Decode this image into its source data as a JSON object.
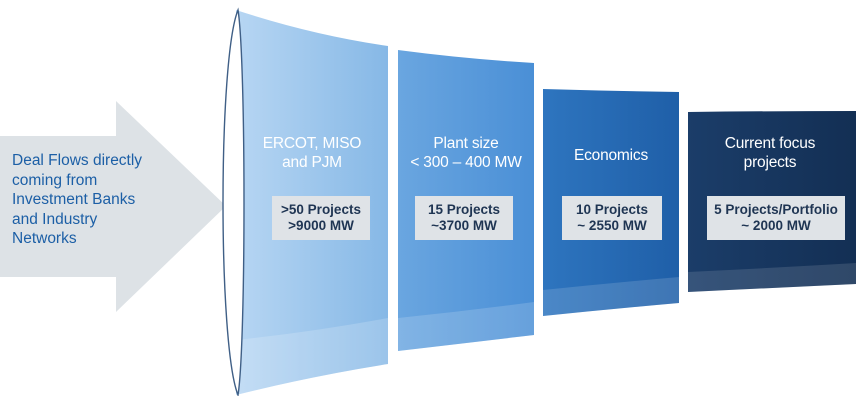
{
  "arrow": {
    "lines": [
      "Deal Flows directly",
      "coming from",
      "Investment Banks",
      "and Industry",
      "Networks"
    ]
  },
  "stages": [
    {
      "heading": [
        "ERCOT, MISO",
        "and PJM"
      ],
      "box": [
        ">50 Projects",
        ">9000 MW"
      ],
      "color": "#8fbfe9"
    },
    {
      "heading": [
        "Plant size",
        "< 300 – 400 MW"
      ],
      "box": [
        "15 Projects",
        "~3700 MW"
      ],
      "color": "#5799dc"
    },
    {
      "heading": [
        "Economics"
      ],
      "box": [
        "10 Projects",
        "~ 2550 MW"
      ],
      "color": "#2467b1"
    },
    {
      "heading": [
        "Current focus",
        "projects"
      ],
      "box": [
        "5 Projects/Portfolio",
        "~ 2000 MW"
      ],
      "color": "#16365e"
    }
  ],
  "colors": {
    "arrow": "#dde2e6",
    "arrow_text": "#1c5fa6",
    "box_bg": "#dfe3e7",
    "box_text": "#1f3553"
  }
}
